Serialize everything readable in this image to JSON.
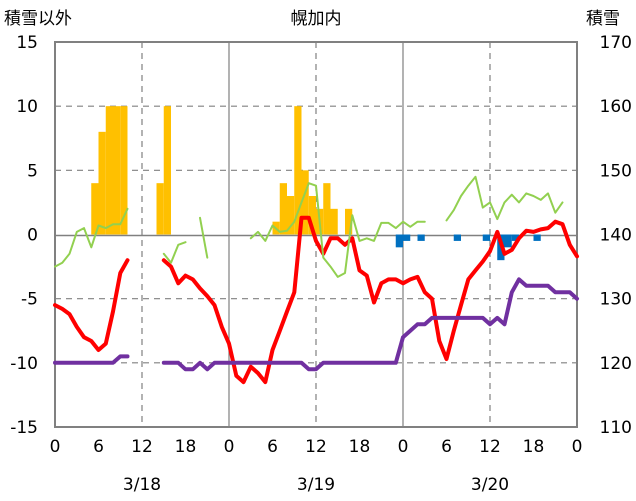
{
  "chart_data": {
    "type": "line",
    "title": "幌加内",
    "y_left_label": "積雪以外",
    "y_right_label": "積雪",
    "y_left_range": [
      -15,
      15
    ],
    "y_left_ticks": [
      "15",
      "10",
      "5",
      "0",
      "-5",
      "-10",
      "-15"
    ],
    "y_right_range": [
      110,
      170
    ],
    "y_right_ticks": [
      "170",
      "160",
      "150",
      "140",
      "130",
      "120",
      "110"
    ],
    "x_range": [
      0,
      72
    ],
    "x_tick_labels": [
      "0",
      "6",
      "12",
      "18",
      "0",
      "6",
      "12",
      "18",
      "0",
      "6",
      "12",
      "18",
      "0"
    ],
    "date_labels": [
      "3/18",
      "3/19",
      "3/20"
    ],
    "colors": {
      "precipitation": "#ffc000",
      "snow_change": "#0070c0",
      "temperature": "#ff0000",
      "wind": "#92d050",
      "snow_depth": "#7030a0",
      "axis": "#808080",
      "grid": "#808080"
    },
    "precipitation_bars": [
      {
        "hour": 6,
        "value": 4
      },
      {
        "hour": 7,
        "value": 8
      },
      {
        "hour": 8,
        "value": 10
      },
      {
        "hour": 9,
        "value": 10
      },
      {
        "hour": 10,
        "value": 10
      },
      {
        "hour": 15,
        "value": 4
      },
      {
        "hour": 16,
        "value": 10
      },
      {
        "hour": 31,
        "value": 1
      },
      {
        "hour": 32,
        "value": 4
      },
      {
        "hour": 33,
        "value": 3
      },
      {
        "hour": 34,
        "value": 10
      },
      {
        "hour": 35,
        "value": 5
      },
      {
        "hour": 36,
        "value": 3
      },
      {
        "hour": 37,
        "value": 2
      },
      {
        "hour": 38,
        "value": 4
      },
      {
        "hour": 39,
        "value": 2
      },
      {
        "hour": 41,
        "value": 2
      }
    ],
    "snow_change_bars": [
      {
        "hour": 48,
        "value": -1
      },
      {
        "hour": 49,
        "value": -0.5
      },
      {
        "hour": 51,
        "value": -0.5
      },
      {
        "hour": 56,
        "value": -0.5
      },
      {
        "hour": 60,
        "value": -0.5
      },
      {
        "hour": 62,
        "value": -2
      },
      {
        "hour": 63,
        "value": -1
      },
      {
        "hour": 64,
        "value": -0.5
      },
      {
        "hour": 67,
        "value": -0.5
      }
    ],
    "series": [
      {
        "key": "temperature",
        "axis": "left",
        "width": 4,
        "points": [
          [
            0,
            -5.5
          ],
          [
            1,
            -5.8
          ],
          [
            2,
            -6.2
          ],
          [
            3,
            -7.2
          ],
          [
            4,
            -8
          ],
          [
            5,
            -8.3
          ],
          [
            6,
            -9
          ],
          [
            7,
            -8.5
          ],
          [
            8,
            -6
          ],
          [
            9,
            -3
          ],
          [
            10,
            -2
          ],
          null,
          [
            15,
            -2
          ],
          [
            16,
            -2.5
          ],
          [
            17,
            -3.8
          ],
          [
            18,
            -3.2
          ],
          [
            19,
            -3.5
          ],
          [
            20,
            -4.2
          ],
          [
            21,
            -4.8
          ],
          [
            22,
            -5.5
          ],
          [
            23,
            -7.2
          ],
          [
            24,
            -8.5
          ],
          [
            25,
            -11
          ],
          [
            26,
            -11.5
          ],
          [
            27,
            -10.3
          ],
          [
            28,
            -10.8
          ],
          [
            29,
            -11.5
          ],
          [
            30,
            -9
          ],
          [
            31,
            -7.5
          ],
          [
            32,
            -6
          ],
          [
            33,
            -4.5
          ],
          [
            34,
            1.3
          ],
          [
            35,
            1.3
          ],
          [
            36,
            -0.5
          ],
          [
            37,
            -1.5
          ],
          [
            38,
            -0.3
          ],
          [
            39,
            -0.3
          ],
          [
            40,
            -0.8
          ],
          [
            41,
            -0.3
          ],
          [
            42,
            -2.8
          ],
          [
            43,
            -3.2
          ],
          [
            44,
            -5.3
          ],
          [
            45,
            -3.8
          ],
          [
            46,
            -3.5
          ],
          [
            47,
            -3.5
          ],
          [
            48,
            -3.8
          ],
          [
            49,
            -3.5
          ],
          [
            50,
            -3.3
          ],
          [
            51,
            -4.5
          ],
          [
            52,
            -5
          ],
          [
            53,
            -8.3
          ],
          [
            54,
            -9.7
          ],
          [
            55,
            -7.5
          ],
          [
            56,
            -5.5
          ],
          [
            57,
            -3.5
          ],
          [
            58,
            -2.8
          ],
          [
            59,
            -2.1
          ],
          [
            60,
            -1.3
          ],
          [
            61,
            0.2
          ],
          [
            62,
            -1.5
          ],
          [
            63,
            -1.2
          ],
          [
            64,
            -0.3
          ],
          [
            65,
            0.3
          ],
          [
            66,
            0.2
          ],
          [
            67,
            0.4
          ],
          [
            68,
            0.5
          ],
          [
            69,
            1
          ],
          [
            70,
            0.8
          ],
          [
            71,
            -0.8
          ],
          [
            72,
            -1.7
          ]
        ]
      },
      {
        "key": "wind",
        "axis": "left",
        "width": 2,
        "points": [
          [
            0,
            -2.5
          ],
          [
            1,
            -2.2
          ],
          [
            2,
            -1.5
          ],
          [
            3,
            0.2
          ],
          [
            4,
            0.5
          ],
          [
            5,
            -1
          ],
          [
            6,
            0.7
          ],
          [
            7,
            0.5
          ],
          [
            8,
            0.8
          ],
          [
            9,
            0.8
          ],
          [
            10,
            2
          ],
          null,
          [
            15,
            -1.5
          ],
          [
            16,
            -2.2
          ],
          [
            17,
            -0.8
          ],
          [
            18,
            -0.6
          ],
          null,
          [
            20,
            1.3
          ],
          [
            21,
            -1.8
          ],
          null,
          [
            27,
            -0.3
          ],
          [
            28,
            0.2
          ],
          [
            29,
            -0.5
          ],
          [
            30,
            0.7
          ],
          [
            31,
            0.2
          ],
          [
            32,
            0.3
          ],
          [
            33,
            1
          ],
          [
            34,
            2.5
          ],
          [
            35,
            4
          ],
          [
            36,
            3.8
          ],
          [
            37,
            -1.8
          ],
          [
            38,
            -2.5
          ],
          [
            39,
            -3.3
          ],
          [
            40,
            -3
          ],
          [
            41,
            1.5
          ],
          [
            42,
            -0.5
          ],
          [
            43,
            -0.3
          ],
          [
            44,
            -0.5
          ],
          [
            45,
            0.9
          ],
          [
            46,
            0.9
          ],
          [
            47,
            0.5
          ],
          [
            48,
            1
          ],
          [
            49,
            0.6
          ],
          [
            50,
            1
          ],
          [
            51,
            1
          ],
          null,
          [
            54,
            1.1
          ],
          [
            55,
            1.9
          ],
          [
            56,
            3
          ],
          [
            57,
            3.8
          ],
          [
            58,
            4.5
          ],
          [
            59,
            2.1
          ],
          [
            60,
            2.5
          ],
          [
            61,
            1.2
          ],
          [
            62,
            2.5
          ],
          [
            63,
            3.1
          ],
          [
            64,
            2.5
          ],
          [
            65,
            3.2
          ],
          [
            66,
            3
          ],
          [
            67,
            2.7
          ],
          [
            68,
            3.2
          ],
          [
            69,
            1.7
          ],
          [
            70,
            2.5
          ]
        ]
      },
      {
        "key": "snow_depth",
        "axis": "right",
        "width": 4,
        "points": [
          [
            0,
            120
          ],
          [
            1,
            120
          ],
          [
            2,
            120
          ],
          [
            3,
            120
          ],
          [
            4,
            120
          ],
          [
            5,
            120
          ],
          [
            6,
            120
          ],
          [
            7,
            120
          ],
          [
            8,
            120
          ],
          [
            9,
            121
          ],
          [
            10,
            121
          ],
          null,
          [
            15,
            120
          ],
          [
            16,
            120
          ],
          [
            17,
            120
          ],
          [
            18,
            119
          ],
          [
            19,
            119
          ],
          [
            20,
            120
          ],
          [
            21,
            119
          ],
          [
            22,
            120
          ],
          [
            23,
            120
          ],
          [
            24,
            120
          ],
          [
            25,
            120
          ],
          [
            26,
            120
          ],
          [
            27,
            120
          ],
          [
            28,
            120
          ],
          [
            29,
            120
          ],
          [
            30,
            120
          ],
          [
            31,
            120
          ],
          [
            32,
            120
          ],
          [
            33,
            120
          ],
          [
            34,
            120
          ],
          [
            35,
            119
          ],
          [
            36,
            119
          ],
          [
            37,
            120
          ],
          [
            38,
            120
          ],
          [
            39,
            120
          ],
          [
            40,
            120
          ],
          [
            41,
            120
          ],
          [
            42,
            120
          ],
          [
            43,
            120
          ],
          [
            44,
            120
          ],
          [
            45,
            120
          ],
          [
            46,
            120
          ],
          [
            47,
            120
          ],
          [
            48,
            124
          ],
          [
            49,
            125
          ],
          [
            50,
            126
          ],
          [
            51,
            126
          ],
          [
            52,
            127
          ],
          [
            53,
            127
          ],
          [
            54,
            127
          ],
          [
            55,
            127
          ],
          [
            56,
            127
          ],
          [
            57,
            127
          ],
          [
            58,
            127
          ],
          [
            59,
            127
          ],
          [
            60,
            126
          ],
          [
            61,
            127
          ],
          [
            62,
            126
          ],
          [
            63,
            131
          ],
          [
            64,
            133
          ],
          [
            65,
            132
          ],
          [
            66,
            132
          ],
          [
            67,
            132
          ],
          [
            68,
            132
          ],
          [
            69,
            131
          ],
          [
            70,
            131
          ],
          [
            71,
            131
          ],
          [
            72,
            130
          ]
        ]
      }
    ]
  }
}
